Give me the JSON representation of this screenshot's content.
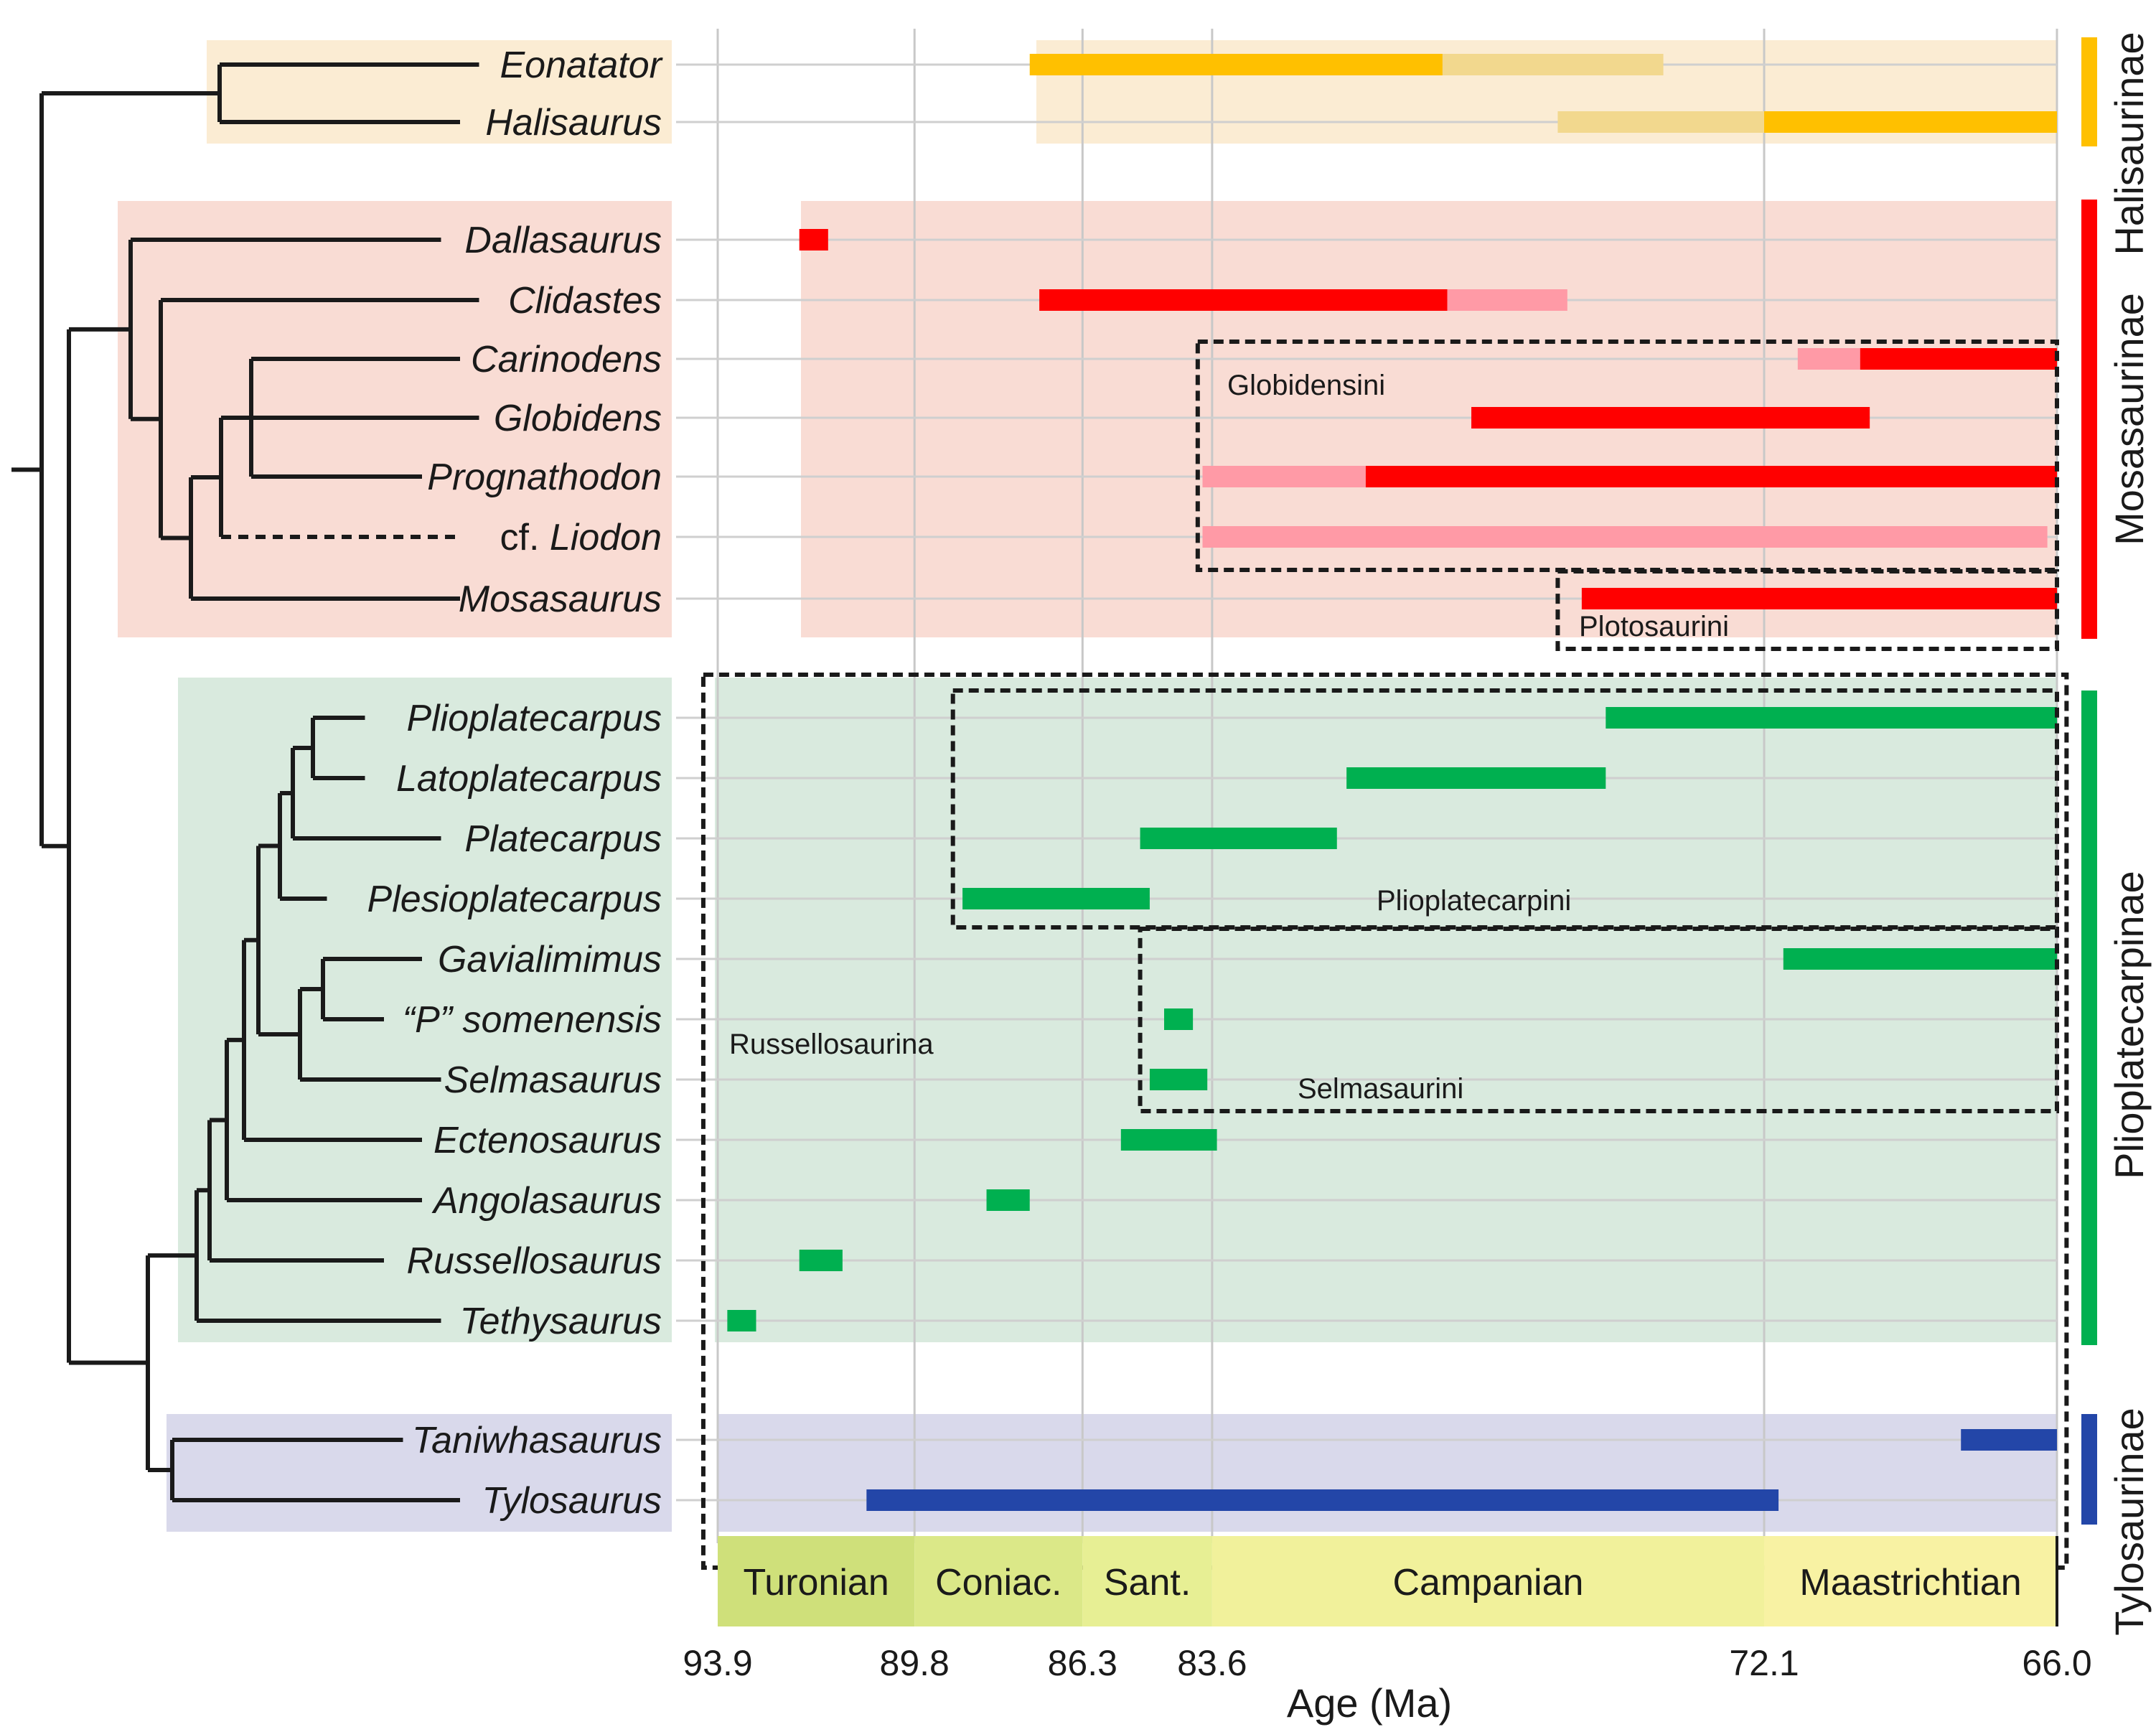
{
  "chart_data": {
    "type": "range_chart",
    "xlabel": "Age (Ma)",
    "xlim": [
      93.9,
      66.0
    ],
    "x_ticks": [
      93.9,
      89.8,
      86.3,
      83.6,
      72.1,
      66.0
    ],
    "stages": [
      {
        "name": "Turonian",
        "start": 93.9,
        "end": 89.8,
        "color": "#cfe07a"
      },
      {
        "name": "Coniac.",
        "start": 89.8,
        "end": 86.3,
        "color": "#dbe888"
      },
      {
        "name": "Sant.",
        "start": 86.3,
        "end": 83.6,
        "color": "#e7ef94"
      },
      {
        "name": "Campanian",
        "start": 83.6,
        "end": 72.1,
        "color": "#f1f19b"
      },
      {
        "name": "Maastrichtian",
        "start": 72.1,
        "end": 66.0,
        "color": "#f8f2a3"
      }
    ],
    "subfamilies": [
      {
        "name": "Halisaurinae",
        "color": "#ffc000",
        "bg": "#fbecd3"
      },
      {
        "name": "Mosasaurinae",
        "color": "#ff0000",
        "bg": "#f9dcd4"
      },
      {
        "name": "Plioplatecarpinae",
        "color": "#00b050",
        "bg": "#d9eade"
      },
      {
        "name": "Tylosaurinae",
        "color": "#2346a8",
        "bg": "#d9d9eb"
      }
    ],
    "taxa": [
      {
        "name": "Eonatator",
        "group": "Halisaurinae",
        "ranges": [
          {
            "start": 87.4,
            "end": 78.8,
            "certain": true
          },
          {
            "start": 78.8,
            "end": 74.2,
            "certain": false
          }
        ]
      },
      {
        "name": "Halisaurus",
        "group": "Halisaurinae",
        "ranges": [
          {
            "start": 76.4,
            "end": 72.1,
            "certain": false
          },
          {
            "start": 72.1,
            "end": 66.0,
            "certain": true
          }
        ]
      },
      {
        "name": "Dallasaurus",
        "group": "Mosasaurinae",
        "ranges": [
          {
            "start": 92.2,
            "end": 91.6,
            "certain": true
          }
        ]
      },
      {
        "name": "Clidastes",
        "group": "Mosasaurinae",
        "ranges": [
          {
            "start": 87.2,
            "end": 78.7,
            "certain": true
          },
          {
            "start": 78.7,
            "end": 76.2,
            "certain": false
          }
        ]
      },
      {
        "name": "Carinodens",
        "group": "Mosasaurinae",
        "ranges": [
          {
            "start": 71.4,
            "end": 70.1,
            "certain": false
          },
          {
            "start": 70.1,
            "end": 66.0,
            "certain": true
          }
        ]
      },
      {
        "name": "Globidens",
        "group": "Mosasaurinae",
        "ranges": [
          {
            "start": 78.2,
            "end": 69.9,
            "certain": true
          }
        ]
      },
      {
        "name": "Prognathodon",
        "group": "Mosasaurinae",
        "ranges": [
          {
            "start": 83.8,
            "end": 80.4,
            "certain": false
          },
          {
            "start": 80.4,
            "end": 66.0,
            "certain": true
          }
        ]
      },
      {
        "name": "Liodon",
        "prefix": "cf.",
        "group": "Mosasaurinae",
        "dashed_branch": true,
        "ranges": [
          {
            "start": 83.8,
            "end": 66.2,
            "certain": false
          }
        ]
      },
      {
        "name": "Mosasaurus",
        "group": "Mosasaurinae",
        "ranges": [
          {
            "start": 75.9,
            "end": 66.0,
            "certain": true
          }
        ]
      },
      {
        "name": "Plioplatecarpus",
        "group": "Plioplatecarpinae",
        "ranges": [
          {
            "start": 75.4,
            "end": 66.0,
            "certain": true
          }
        ]
      },
      {
        "name": "Latoplatecarpus",
        "group": "Plioplatecarpinae",
        "ranges": [
          {
            "start": 80.8,
            "end": 75.4,
            "certain": true
          }
        ]
      },
      {
        "name": "Platecarpus",
        "group": "Plioplatecarpinae",
        "ranges": [
          {
            "start": 85.1,
            "end": 81.0,
            "certain": true
          }
        ]
      },
      {
        "name": "Plesioplatecarpus",
        "group": "Plioplatecarpinae",
        "ranges": [
          {
            "start": 88.8,
            "end": 84.9,
            "certain": true
          }
        ]
      },
      {
        "name": "Gavialimimus",
        "group": "Plioplatecarpinae",
        "ranges": [
          {
            "start": 71.7,
            "end": 66.0,
            "certain": true
          }
        ]
      },
      {
        "name": "somenensis",
        "prefix": "“P”",
        "group": "Plioplatecarpinae",
        "ranges": [
          {
            "start": 84.6,
            "end": 84.0,
            "certain": true
          }
        ]
      },
      {
        "name": "Selmasaurus",
        "group": "Plioplatecarpinae",
        "ranges": [
          {
            "start": 84.9,
            "end": 83.7,
            "certain": true
          }
        ]
      },
      {
        "name": "Ectenosaurus",
        "group": "Plioplatecarpinae",
        "ranges": [
          {
            "start": 85.5,
            "end": 83.5,
            "certain": true
          }
        ]
      },
      {
        "name": "Angolasaurus",
        "group": "Plioplatecarpinae",
        "ranges": [
          {
            "start": 88.3,
            "end": 87.4,
            "certain": true
          }
        ]
      },
      {
        "name": "Russellosaurus",
        "group": "Plioplatecarpinae",
        "ranges": [
          {
            "start": 92.2,
            "end": 91.3,
            "certain": true
          }
        ]
      },
      {
        "name": "Tethysaurus",
        "group": "Plioplatecarpinae",
        "ranges": [
          {
            "start": 93.7,
            "end": 93.1,
            "certain": true
          }
        ]
      },
      {
        "name": "Taniwhasaurus",
        "group": "Tylosaurinae",
        "ranges": [
          {
            "start": 68.0,
            "end": 66.0,
            "certain": true
          }
        ]
      },
      {
        "name": "Tylosaurus",
        "group": "Tylosaurinae",
        "ranges": [
          {
            "start": 90.8,
            "end": 71.8,
            "certain": true
          }
        ]
      }
    ],
    "clade_boxes": [
      {
        "name": "Globidensini",
        "from_age": 83.9,
        "to_age": 66.0,
        "first_taxon": "Carinodens",
        "last_taxon": "Liodon"
      },
      {
        "name": "Plotosaurini",
        "from_age": 76.4,
        "to_age": 66.0,
        "first_taxon": "Mosasaurus",
        "last_taxon": "Mosasaurus"
      },
      {
        "name": "Russellosaurina",
        "from_age": 94.2,
        "to_age": 65.8,
        "first_taxon": "Plioplatecarpus",
        "last_taxon": "Tylosaurus"
      },
      {
        "name": "Plioplatecarpini",
        "from_age": 89.0,
        "to_age": 66.0,
        "first_taxon": "Plioplatecarpus",
        "last_taxon": "Plesioplatecarpus"
      },
      {
        "name": "Selmasaurini",
        "from_age": 85.1,
        "to_age": 66.0,
        "first_taxon": "Gavialimimus",
        "last_taxon": "Selmasaurus"
      }
    ]
  }
}
